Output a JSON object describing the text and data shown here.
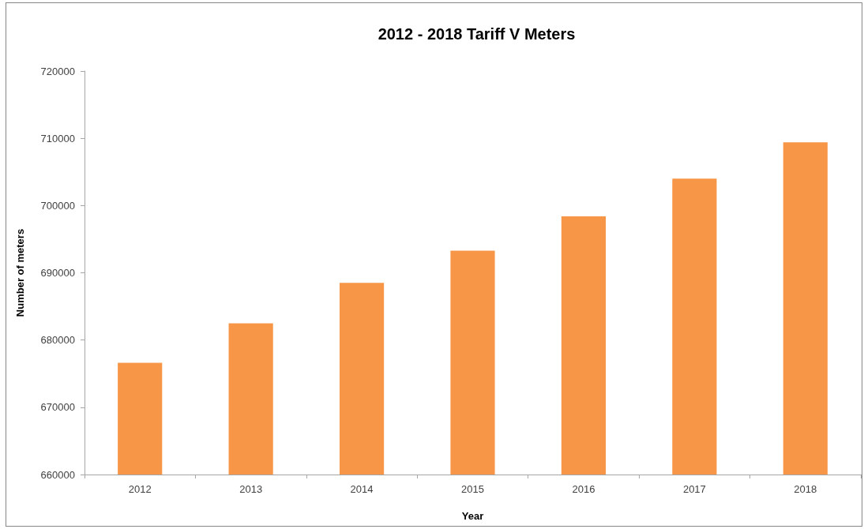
{
  "chart_data": {
    "type": "bar",
    "title": "2012 - 2018 Tariff V Meters",
    "xlabel": "Year",
    "ylabel": "Number of meters",
    "categories": [
      "2012",
      "2013",
      "2014",
      "2015",
      "2016",
      "2017",
      "2018"
    ],
    "values": [
      676600,
      682500,
      688500,
      693300,
      698400,
      704000,
      709400
    ],
    "color": "#f79646",
    "ylim": [
      660000,
      720000
    ],
    "yticks": [
      660000,
      670000,
      680000,
      690000,
      700000,
      710000,
      720000
    ]
  }
}
